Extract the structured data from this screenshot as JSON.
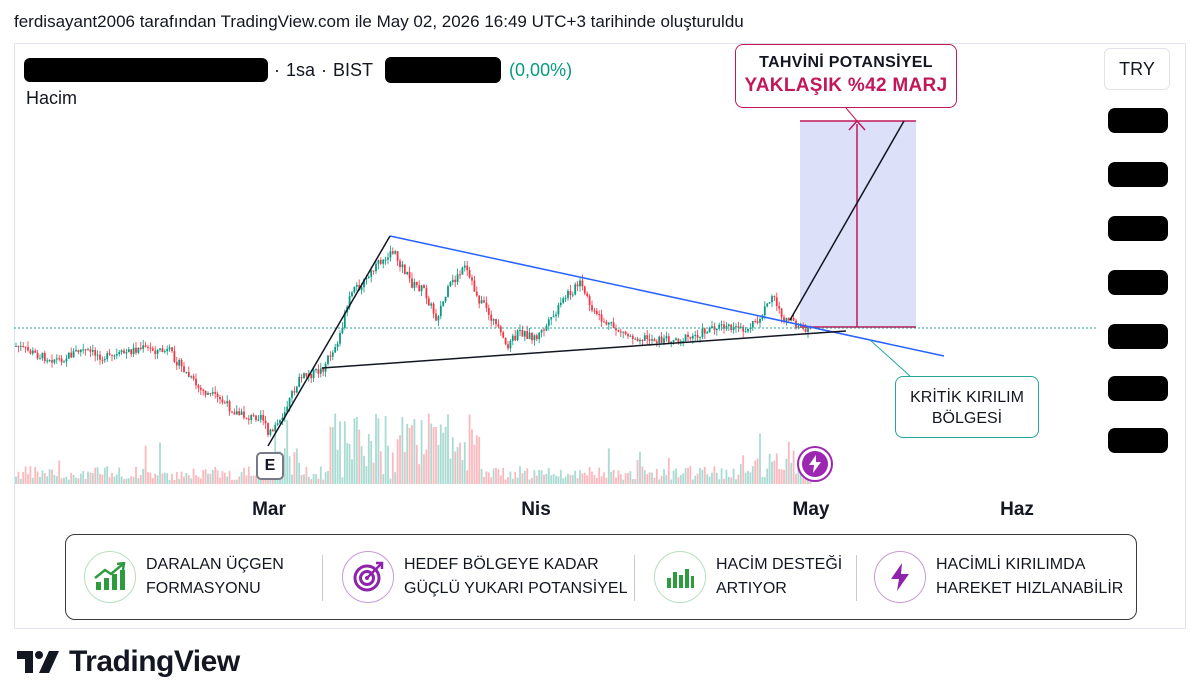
{
  "header": {
    "text": "ferdisayant2006 tarafından TradingView.com ile May 02, 2026 16:49 UTC+3 tarihinde oluşturuldu"
  },
  "legend": {
    "interval": "1sa",
    "exchange": "BIST",
    "change": "(0,00%)",
    "separator": "·"
  },
  "volume_label": "Hacim",
  "currency": "TRY",
  "x_axis": [
    "Mar",
    "Nis",
    "May",
    "Haz"
  ],
  "annotations": {
    "target_line1": "TAHVİNİ POTANSİYEL",
    "target_line2": "YAKLAŞIK %42 MARJ",
    "breakout_line1": "KRİTİK KIRILIM",
    "breakout_line2": "BÖLGESİ"
  },
  "markers": {
    "earnings": "E"
  },
  "colors": {
    "up": "#089981",
    "down": "#f23645",
    "target": "#c2185b",
    "zone": "#d6dcf8",
    "trend_blue": "#2962ff",
    "bolt": "#9c27b0"
  },
  "info_panel": [
    {
      "icon": "growth-chart-icon",
      "line1": "DARALAN ÜÇGEN",
      "line2": "FORMASYONU"
    },
    {
      "icon": "target-icon",
      "line1": "HEDEF BÖLGEYE KADAR",
      "line2": "GÜÇLÜ YUKARI POTANSİYEL"
    },
    {
      "icon": "volume-bars-icon",
      "line1": "HACİM DESTEĞİ",
      "line2": "ARTIYOR"
    },
    {
      "icon": "lightning-icon",
      "line1": "HACİMLİ KIRILIMDA",
      "line2": "HAREKET HIZLANABİLİR"
    }
  ],
  "brand": {
    "name": "TradingView"
  }
}
